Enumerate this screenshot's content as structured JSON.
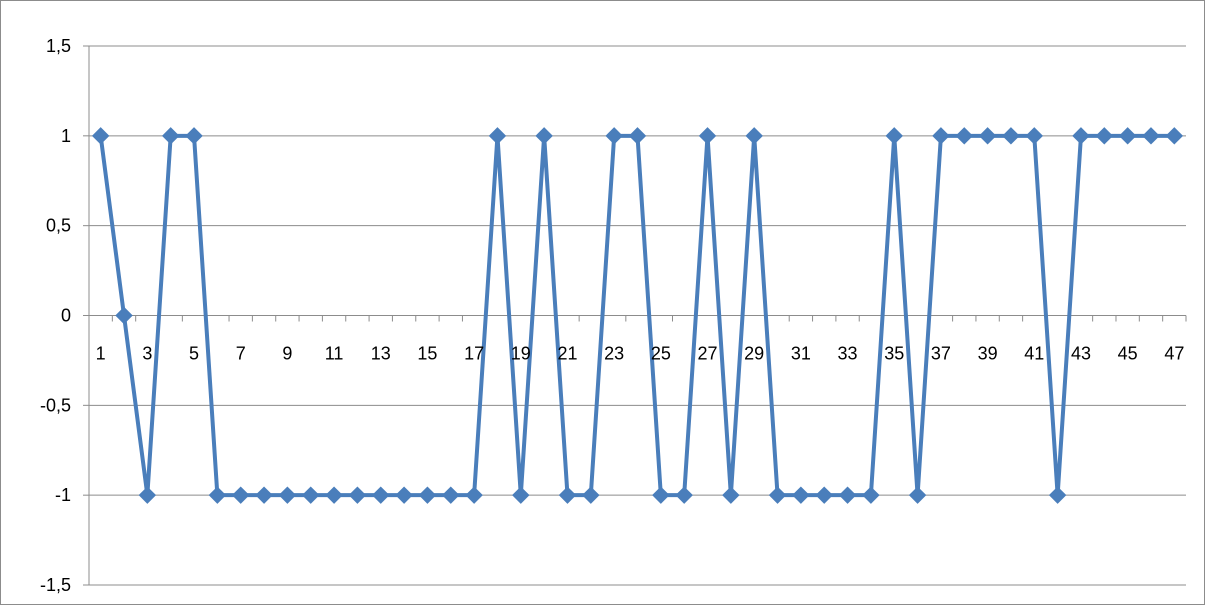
{
  "chart_data": {
    "type": "line",
    "title": "",
    "xlabel": "",
    "ylabel": "",
    "x": [
      1,
      2,
      3,
      4,
      5,
      6,
      7,
      8,
      9,
      10,
      11,
      12,
      13,
      14,
      15,
      16,
      17,
      18,
      19,
      20,
      21,
      22,
      23,
      24,
      25,
      26,
      27,
      28,
      29,
      30,
      31,
      32,
      33,
      34,
      35,
      36,
      37,
      38,
      39,
      40,
      41,
      42,
      43,
      44,
      45,
      46,
      47
    ],
    "series": [
      {
        "values": [
          1,
          0,
          -1,
          1,
          1,
          -1,
          -1,
          -1,
          -1,
          -1,
          -1,
          -1,
          -1,
          -1,
          -1,
          -1,
          -1,
          1,
          -1,
          1,
          -1,
          -1,
          1,
          1,
          -1,
          -1,
          1,
          -1,
          1,
          -1,
          -1,
          -1,
          -1,
          -1,
          1,
          -1,
          1,
          1,
          1,
          1,
          1,
          -1,
          1,
          1,
          1,
          1,
          1
        ],
        "color": "#4a7ebb",
        "marker": "diamond"
      }
    ],
    "ylim": [
      -1.5,
      1.5
    ],
    "yticks": [
      "-1,5",
      "-1",
      "-0,5",
      "0",
      "0,5",
      "1",
      "1,5"
    ],
    "xtick_labels": [
      "1",
      "3",
      "5",
      "7",
      "9",
      "11",
      "13",
      "15",
      "17",
      "19",
      "21",
      "23",
      "25",
      "27",
      "29",
      "31",
      "33",
      "35",
      "37",
      "39",
      "41",
      "43",
      "45",
      "47"
    ],
    "grid": "horizontal",
    "legend": "none"
  }
}
